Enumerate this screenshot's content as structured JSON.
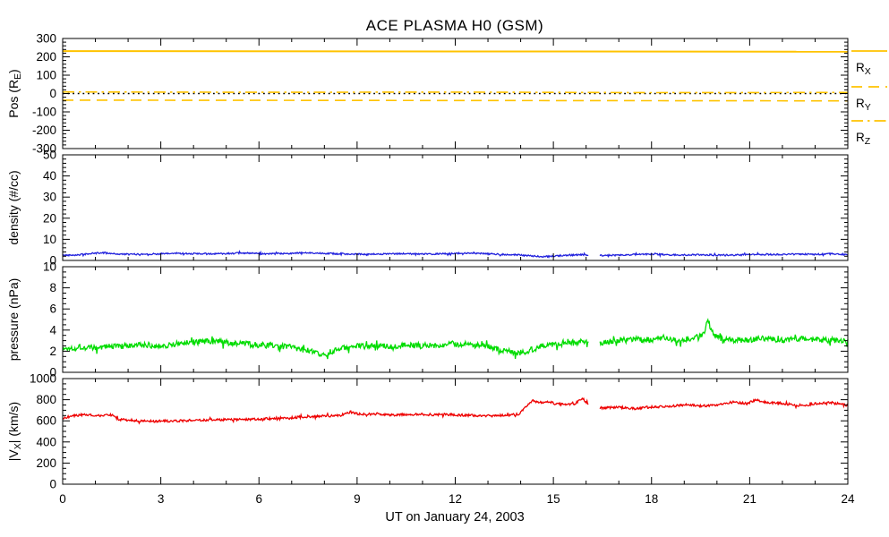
{
  "title": "ACE PLASMA H0 (GSM)",
  "background": "#FFFFFF",
  "axis_color": "#000000",
  "xaxis": {
    "label": "UT on January 24, 2003",
    "range": [
      0,
      24
    ],
    "major_ticks": [
      0,
      3,
      6,
      9,
      12,
      15,
      18,
      21,
      24
    ],
    "minor_step": 1
  },
  "legend": {
    "color": "#FFC300",
    "entries": [
      {
        "label_main": "R",
        "label_sub": "X",
        "style": "solid"
      },
      {
        "label_main": "R",
        "label_sub": "Y",
        "style": "dashed"
      },
      {
        "label_main": "R",
        "label_sub": "Z",
        "style": "dashdot"
      }
    ]
  },
  "chart_data": {
    "type": "line",
    "title": "ACE PLASMA H0 (GSM)",
    "xlabel": "UT on January 24, 2003",
    "x_range": [
      0,
      24
    ],
    "grid": false,
    "legend_position": "right-of-first-panel",
    "panels": [
      {
        "id": "pos",
        "ylabel_text": "Pos (R_E)",
        "ylabel_parts": [
          {
            "t": "Pos (R"
          },
          {
            "sub": "E"
          },
          {
            "t": ")"
          }
        ],
        "yrange": [
          -300,
          300
        ],
        "yticks": [
          -300,
          -200,
          -100,
          0,
          100,
          200,
          300
        ],
        "yminor_step": 20,
        "series": [
          {
            "name": "zero-line",
            "style": "dotted",
            "color": "#000000",
            "width": 1.4,
            "noise": 0,
            "points": [
              [
                0,
                0
              ],
              [
                24,
                0
              ]
            ]
          },
          {
            "name": "R_X",
            "style": "solid",
            "color": "#FFC300",
            "width": 2,
            "noise": 0,
            "points": [
              [
                0,
                231
              ],
              [
                24,
                228
              ]
            ]
          },
          {
            "name": "R_Y",
            "style": "dashed",
            "color": "#FFC300",
            "width": 1.6,
            "noise": 0,
            "points": [
              [
                0,
                -36
              ],
              [
                24,
                -40
              ]
            ]
          },
          {
            "name": "R_Z",
            "style": "dashdot",
            "color": "#FFC300",
            "width": 1.6,
            "noise": 0,
            "points": [
              [
                0,
                9
              ],
              [
                6,
                7
              ],
              [
                12,
                8
              ],
              [
                18,
                5
              ],
              [
                24,
                6
              ]
            ]
          }
        ]
      },
      {
        "id": "density",
        "ylabel_text": "density (#/cc)",
        "ylabel_parts": [
          {
            "t": "density (#/cc)"
          }
        ],
        "yrange": [
          0,
          50
        ],
        "yticks": [
          0,
          10,
          20,
          30,
          40,
          50
        ],
        "yminor_step": 2,
        "series": [
          {
            "name": "density",
            "style": "solid",
            "color": "#2222DD",
            "width": 1.3,
            "noise": 0.35,
            "seed": 42,
            "gaps": [
              [
                16.08,
                16.42
              ]
            ],
            "points": [
              [
                0,
                2.4
              ],
              [
                0.5,
                2.7
              ],
              [
                0.9,
                3.3
              ],
              [
                1.3,
                3.7
              ],
              [
                1.6,
                3.1
              ],
              [
                2,
                2.9
              ],
              [
                2.5,
                3.0
              ],
              [
                3,
                3.1
              ],
              [
                3.5,
                3.4
              ],
              [
                4,
                3.2
              ],
              [
                4.5,
                3.1
              ],
              [
                5,
                3.3
              ],
              [
                5.5,
                3.5
              ],
              [
                6,
                3.2
              ],
              [
                6.5,
                3.1
              ],
              [
                7,
                3.4
              ],
              [
                7.5,
                3.6
              ],
              [
                8,
                3.4
              ],
              [
                8.5,
                3.1
              ],
              [
                9,
                3.0
              ],
              [
                9.5,
                2.9
              ],
              [
                10,
                3.1
              ],
              [
                10.5,
                3.2
              ],
              [
                11,
                3.0
              ],
              [
                11.5,
                3.1
              ],
              [
                12,
                3.3
              ],
              [
                12.5,
                3.5
              ],
              [
                13,
                3.1
              ],
              [
                13.4,
                2.9
              ],
              [
                13.8,
                2.7
              ],
              [
                14.2,
                2.3
              ],
              [
                14.6,
                1.8
              ],
              [
                15,
                2.0
              ],
              [
                15.4,
                2.5
              ],
              [
                15.8,
                2.7
              ],
              [
                16.1,
                2.6
              ],
              [
                16.45,
                2.4
              ],
              [
                17,
                2.5
              ],
              [
                17.5,
                2.8
              ],
              [
                18,
                3.0
              ],
              [
                18.5,
                2.7
              ],
              [
                19,
                2.6
              ],
              [
                19.5,
                2.7
              ],
              [
                20,
                2.5
              ],
              [
                20.5,
                2.6
              ],
              [
                21,
                2.7
              ],
              [
                21.5,
                2.9
              ],
              [
                22,
                2.8
              ],
              [
                22.5,
                3.0
              ],
              [
                23,
                2.9
              ],
              [
                23.5,
                3.1
              ],
              [
                24,
                2.9
              ]
            ]
          }
        ]
      },
      {
        "id": "pressure",
        "ylabel_text": "pressure (nPa)",
        "ylabel_parts": [
          {
            "t": "pressure (nPa)"
          }
        ],
        "yrange": [
          0,
          10
        ],
        "yticks": [
          0,
          2,
          4,
          6,
          8,
          10
        ],
        "yminor_step": 0.5,
        "series": [
          {
            "name": "pressure",
            "style": "solid",
            "color": "#00DC00",
            "width": 1.3,
            "noise": 0.28,
            "seed": 1337,
            "gaps": [
              [
                16.08,
                16.42
              ]
            ],
            "points": [
              [
                0,
                2.2
              ],
              [
                0.5,
                2.4
              ],
              [
                1,
                2.3
              ],
              [
                1.5,
                2.5
              ],
              [
                2,
                2.45
              ],
              [
                2.5,
                2.6
              ],
              [
                3,
                2.5
              ],
              [
                3.5,
                2.7
              ],
              [
                4,
                2.85
              ],
              [
                4.5,
                3.0
              ],
              [
                5,
                2.8
              ],
              [
                5.5,
                2.7
              ],
              [
                6,
                2.6
              ],
              [
                6.5,
                2.5
              ],
              [
                7,
                2.4
              ],
              [
                7.5,
                2.05
              ],
              [
                7.9,
                1.6
              ],
              [
                8.2,
                1.95
              ],
              [
                8.6,
                2.3
              ],
              [
                9,
                2.5
              ],
              [
                9.5,
                2.45
              ],
              [
                10,
                2.5
              ],
              [
                10.5,
                2.6
              ],
              [
                11,
                2.5
              ],
              [
                11.5,
                2.6
              ],
              [
                12,
                2.7
              ],
              [
                12.5,
                2.6
              ],
              [
                13,
                2.4
              ],
              [
                13.5,
                2.1
              ],
              [
                13.9,
                1.8
              ],
              [
                14.2,
                2.0
              ],
              [
                14.6,
                2.5
              ],
              [
                15,
                2.7
              ],
              [
                15.5,
                2.9
              ],
              [
                16.08,
                2.85
              ],
              [
                16.42,
                2.8
              ],
              [
                17,
                3.0
              ],
              [
                17.5,
                3.1
              ],
              [
                18,
                3.05
              ],
              [
                18.4,
                3.3
              ],
              [
                18.8,
                3.0
              ],
              [
                19.2,
                3.2
              ],
              [
                19.6,
                3.6
              ],
              [
                19.72,
                5.0
              ],
              [
                19.85,
                3.7
              ],
              [
                20.1,
                3.2
              ],
              [
                20.5,
                3.0
              ],
              [
                21,
                3.1
              ],
              [
                21.5,
                3.25
              ],
              [
                22,
                3.0
              ],
              [
                22.5,
                3.2
              ],
              [
                23,
                3.1
              ],
              [
                23.5,
                3.05
              ],
              [
                24,
                2.85
              ]
            ]
          }
        ]
      },
      {
        "id": "vx",
        "ylabel_text": "|V_X| (km/s)",
        "ylabel_parts": [
          {
            "t": "|V"
          },
          {
            "sub": "X"
          },
          {
            "t": "| (km/s)"
          }
        ],
        "yrange": [
          0,
          1000
        ],
        "yticks": [
          0,
          200,
          400,
          600,
          800,
          1000
        ],
        "yminor_step": 50,
        "series": [
          {
            "name": "vx",
            "style": "solid",
            "color": "#EE0000",
            "width": 1.3,
            "noise": 11,
            "seed": 2003,
            "gaps": [
              [
                16.08,
                16.42
              ]
            ],
            "points": [
              [
                0,
                628
              ],
              [
                0.3,
                645
              ],
              [
                0.6,
                658
              ],
              [
                1.1,
                650
              ],
              [
                1.5,
                655
              ],
              [
                1.7,
                615
              ],
              [
                2.1,
                600
              ],
              [
                2.6,
                595
              ],
              [
                3.1,
                598
              ],
              [
                3.6,
                601
              ],
              [
                4.1,
                605
              ],
              [
                4.6,
                608
              ],
              [
                5.1,
                610
              ],
              [
                5.6,
                613
              ],
              [
                6.1,
                617
              ],
              [
                6.6,
                626
              ],
              [
                7.1,
                632
              ],
              [
                7.6,
                641
              ],
              [
                8.1,
                646
              ],
              [
                8.5,
                652
              ],
              [
                8.8,
                684
              ],
              [
                9.1,
                661
              ],
              [
                9.6,
                666
              ],
              [
                10.1,
                656
              ],
              [
                10.6,
                661
              ],
              [
                11.1,
                658
              ],
              [
                11.6,
                661
              ],
              [
                12.1,
                655
              ],
              [
                12.6,
                650
              ],
              [
                13.1,
                648
              ],
              [
                13.6,
                652
              ],
              [
                13.95,
                665
              ],
              [
                14.15,
                735
              ],
              [
                14.35,
                792
              ],
              [
                14.55,
                772
              ],
              [
                14.85,
                782
              ],
              [
                15.05,
                762
              ],
              [
                15.35,
                752
              ],
              [
                15.65,
                762
              ],
              [
                15.9,
                812
              ],
              [
                16.0,
                768
              ],
              [
                16.08,
                758
              ],
              [
                16.42,
                722
              ],
              [
                17,
                728
              ],
              [
                17.5,
                716
              ],
              [
                18,
                732
              ],
              [
                18.5,
                737
              ],
              [
                19,
                752
              ],
              [
                19.5,
                742
              ],
              [
                20,
                748
              ],
              [
                20.5,
                778
              ],
              [
                20.9,
                762
              ],
              [
                21.2,
                800
              ],
              [
                21.5,
                772
              ],
              [
                22,
                766
              ],
              [
                22.5,
                742
              ],
              [
                23,
                762
              ],
              [
                23.5,
                772
              ],
              [
                24,
                748
              ]
            ]
          }
        ]
      }
    ]
  }
}
